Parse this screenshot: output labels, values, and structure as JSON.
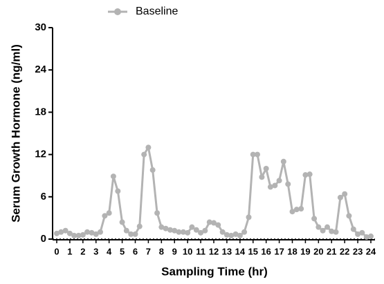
{
  "chart_data": {
    "type": "line",
    "x_label": "Sampling Time (hr)",
    "y_label": "Serum Growth Hormone (ng/ml)",
    "x": [
      0,
      0.33,
      0.67,
      1,
      1.33,
      1.67,
      2,
      2.33,
      2.67,
      3,
      3.33,
      3.67,
      4,
      4.33,
      4.67,
      5,
      5.33,
      5.67,
      6,
      6.33,
      6.67,
      7,
      7.33,
      7.67,
      8,
      8.33,
      8.67,
      9,
      9.33,
      9.67,
      10,
      10.33,
      10.67,
      11,
      11.33,
      11.67,
      12,
      12.33,
      12.67,
      13,
      13.33,
      13.67,
      14,
      14.33,
      14.67,
      15,
      15.33,
      15.67,
      16,
      16.33,
      16.67,
      17,
      17.33,
      17.67,
      18,
      18.33,
      18.67,
      19,
      19.33,
      19.67,
      20,
      20.33,
      20.67,
      21,
      21.33,
      21.67,
      22,
      22.33,
      22.67,
      23,
      23.33,
      23.67,
      24
    ],
    "series": [
      {
        "name": "Baseline",
        "color": "#b3b3b3",
        "values": [
          0.8,
          1.0,
          1.2,
          0.8,
          0.5,
          0.5,
          0.6,
          1.0,
          0.9,
          0.7,
          1.0,
          3.3,
          3.7,
          8.9,
          6.8,
          2.4,
          1.2,
          0.7,
          0.7,
          1.8,
          12.0,
          13.0,
          9.8,
          3.7,
          1.7,
          1.5,
          1.3,
          1.2,
          1.0,
          1.0,
          0.9,
          1.7,
          1.3,
          0.9,
          1.2,
          2.4,
          2.3,
          2.0,
          1.0,
          0.6,
          0.5,
          0.7,
          0.5,
          1.0,
          3.1,
          12.0,
          12.0,
          8.8,
          10.0,
          7.4,
          7.6,
          8.3,
          11.0,
          7.8,
          3.9,
          4.2,
          4.3,
          9.1,
          9.2,
          2.9,
          1.7,
          1.2,
          1.7,
          1.1,
          1.0,
          5.9,
          6.4,
          3.3,
          1.4,
          0.7,
          0.9,
          0.3,
          0.4
        ]
      }
    ],
    "xlim": [
      0,
      24
    ],
    "xticks": [
      0,
      1,
      2,
      3,
      4,
      5,
      6,
      7,
      8,
      9,
      10,
      11,
      12,
      13,
      14,
      15,
      16,
      17,
      18,
      19,
      20,
      21,
      22,
      23,
      24
    ],
    "ylim": [
      0,
      30
    ],
    "yticks": [
      0,
      6,
      12,
      18,
      24,
      30
    ]
  }
}
